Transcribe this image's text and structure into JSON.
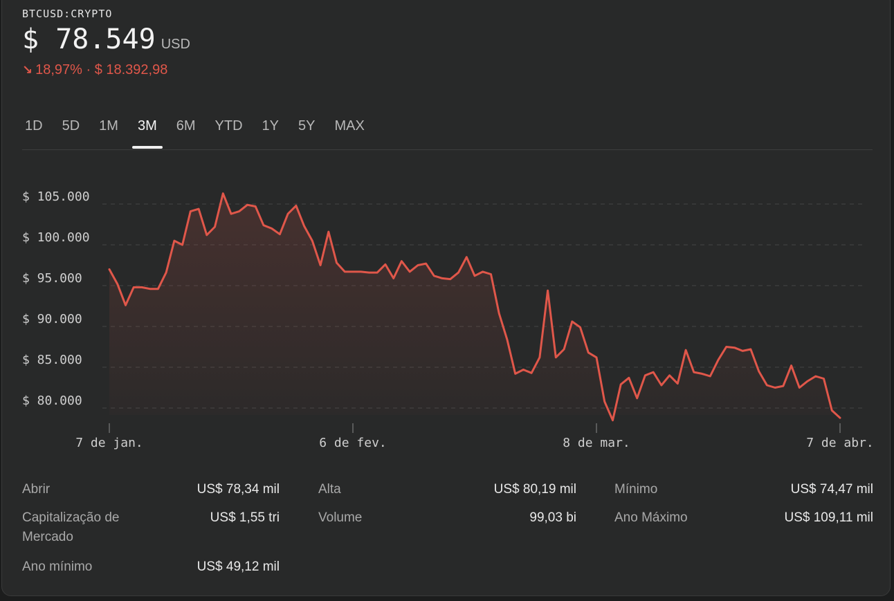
{
  "quote": {
    "symbol": "BTCUSD:CRYPTO",
    "currency_symbol": "$",
    "price": "78.549",
    "price_unit": "USD",
    "change_arrow": "↘",
    "change_text": "18,97% · $ 18.392,98"
  },
  "tabs": [
    {
      "label": "1D",
      "active": false
    },
    {
      "label": "5D",
      "active": false
    },
    {
      "label": "1M",
      "active": false
    },
    {
      "label": "3M",
      "active": true
    },
    {
      "label": "6M",
      "active": false
    },
    {
      "label": "YTD",
      "active": false
    },
    {
      "label": "1Y",
      "active": false
    },
    {
      "label": "5Y",
      "active": false
    },
    {
      "label": "MAX",
      "active": false
    }
  ],
  "colors": {
    "line": "#e0574a",
    "negative": "#e0574a",
    "grid": "#444545"
  },
  "chart_data": {
    "type": "line",
    "ylim": [
      78000,
      106500
    ],
    "y_ticks": [
      {
        "value": 105000,
        "label": "$ 105.000"
      },
      {
        "value": 100000,
        "label": "$ 100.000"
      },
      {
        "value": 95000,
        "label": "$ 95.000"
      },
      {
        "value": 90000,
        "label": "$ 90.000"
      },
      {
        "value": 85000,
        "label": "$ 85.000"
      },
      {
        "value": 80000,
        "label": "$ 80.000"
      }
    ],
    "x_ticks": [
      "7 de jan.",
      "6 de fev.",
      "8 de mar.",
      "7 de abr."
    ],
    "grid": "dashed horizontal",
    "series": [
      {
        "values": [
          97000,
          95200,
          92600,
          94800,
          94800,
          94600,
          94600,
          96600,
          100500,
          100000,
          104100,
          104400,
          101200,
          102200,
          106300,
          103800,
          104100,
          104900,
          104700,
          102400,
          102000,
          101300,
          103800,
          104800,
          102300,
          100500,
          97500,
          101600,
          97800,
          96700,
          96700,
          96700,
          96600,
          96600,
          97600,
          95900,
          98000,
          96700,
          97500,
          97700,
          96200,
          95900,
          95800,
          96600,
          98500,
          96200,
          96700,
          96400,
          91600,
          88400,
          84200,
          84700,
          84300,
          86200,
          94400,
          86200,
          87200,
          90600,
          89900,
          86800,
          86200,
          80800,
          78500,
          82900,
          83700,
          81200,
          84000,
          84400,
          82800,
          84000,
          83000,
          87100,
          84400,
          84200,
          83900,
          85900,
          87500,
          87400,
          87000,
          87200,
          84500,
          82800,
          82500,
          82700,
          85200,
          82500,
          83300,
          83900,
          83600,
          79700,
          78800
        ]
      }
    ]
  },
  "stats": [
    {
      "label": "Abrir",
      "value": "US$ 78,34 mil"
    },
    {
      "label": "Capitalização de",
      "label2": "Mercado",
      "value": "US$ 1,55 tri"
    },
    {
      "label": "Ano mínimo",
      "value": "US$ 49,12 mil"
    },
    {
      "label": "Alta",
      "value": "US$ 80,19 mil"
    },
    {
      "label": "Volume",
      "value": "99,03 bi"
    },
    {
      "label": "Mínimo",
      "value": "US$ 74,47 mil"
    },
    {
      "label": "Ano Máximo",
      "value": "US$ 109,11 mil"
    }
  ]
}
